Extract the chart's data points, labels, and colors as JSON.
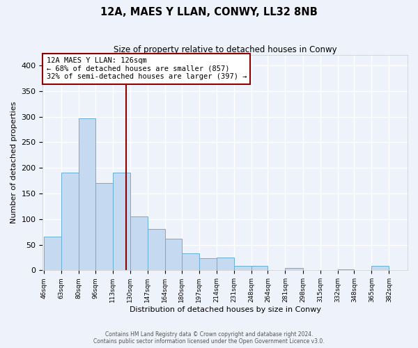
{
  "title": "12A, MAES Y LLAN, CONWY, LL32 8NB",
  "subtitle": "Size of property relative to detached houses in Conwy",
  "xlabel": "Distribution of detached houses by size in Conwy",
  "ylabel": "Number of detached properties",
  "bin_labels": [
    "46sqm",
    "63sqm",
    "80sqm",
    "96sqm",
    "113sqm",
    "130sqm",
    "147sqm",
    "164sqm",
    "180sqm",
    "197sqm",
    "214sqm",
    "231sqm",
    "248sqm",
    "264sqm",
    "281sqm",
    "298sqm",
    "315sqm",
    "332sqm",
    "348sqm",
    "365sqm",
    "382sqm"
  ],
  "bin_edges": [
    46,
    63,
    80,
    96,
    113,
    130,
    147,
    164,
    180,
    197,
    214,
    231,
    248,
    264,
    281,
    298,
    315,
    332,
    348,
    365,
    382
  ],
  "bar_heights": [
    65,
    190,
    297,
    170,
    190,
    105,
    80,
    62,
    33,
    23,
    25,
    8,
    8,
    0,
    5,
    0,
    0,
    2,
    0,
    8,
    0
  ],
  "bar_color": "#c5d9f0",
  "bar_edge_color": "#6baed6",
  "vline_x": 126,
  "vline_color": "#8b0000",
  "annotation_line1": "12A MAES Y LLAN: 126sqm",
  "annotation_line2": "← 68% of detached houses are smaller (857)",
  "annotation_line3": "32% of semi-detached houses are larger (397) →",
  "annotation_box_color": "#ffffff",
  "annotation_box_edge": "#8b0000",
  "ylim": [
    0,
    420
  ],
  "yticks": [
    0,
    50,
    100,
    150,
    200,
    250,
    300,
    350,
    400
  ],
  "footer_line1": "Contains HM Land Registry data © Crown copyright and database right 2024.",
  "footer_line2": "Contains public sector information licensed under the Open Government Licence v3.0.",
  "background_color": "#eef2fa",
  "grid_color": "#ffffff",
  "figsize": [
    6.0,
    5.0
  ],
  "dpi": 100
}
